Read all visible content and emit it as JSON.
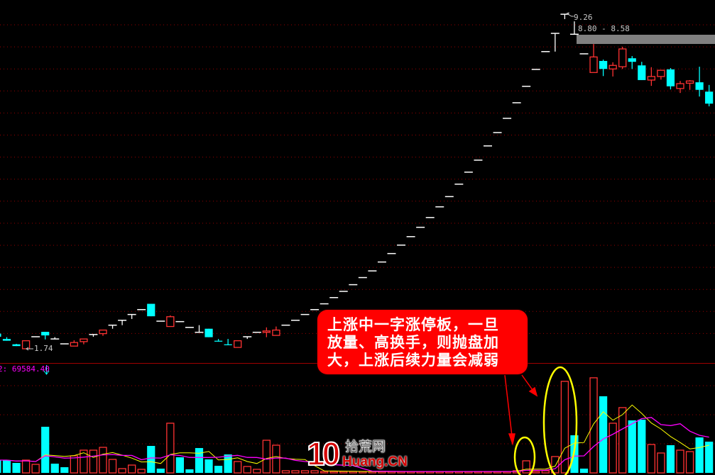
{
  "chart_data": {
    "type": "candlestick",
    "price_scale": "linear",
    "ylim": [
      1.42,
      9.58
    ],
    "grid": true,
    "colors": {
      "up": "#ff3232",
      "down": "#00ffff",
      "flat": "#ffffff",
      "ma_short": "#ffff00",
      "ma_long": "#ff00ff",
      "grid": "#9a0000",
      "gap_bar": "#808080"
    },
    "candles_ohlc": [
      [
        2.08,
        2.08,
        2.01,
        2.01
      ],
      [
        1.96,
        2.0,
        1.92,
        1.92
      ],
      [
        1.84,
        1.85,
        1.8,
        1.8
      ],
      [
        1.74,
        1.92,
        1.74,
        1.92
      ],
      [
        2.01,
        2.01,
        2.01,
        2.01
      ],
      [
        2.12,
        2.12,
        1.95,
        2.04
      ],
      [
        1.96,
        2.0,
        1.96,
        1.96
      ],
      [
        1.85,
        1.85,
        1.85,
        1.85
      ],
      [
        1.8,
        1.93,
        1.8,
        1.88
      ],
      [
        1.9,
        1.96,
        1.84,
        1.96
      ],
      [
        2.06,
        2.06,
        2.01,
        2.06
      ],
      [
        2.08,
        2.16,
        2.03,
        2.16
      ],
      [
        2.27,
        2.27,
        2.19,
        2.27
      ],
      [
        2.38,
        2.38,
        2.27,
        2.38
      ],
      [
        2.51,
        2.51,
        2.41,
        2.51
      ],
      [
        2.62,
        2.62,
        2.62,
        2.62
      ],
      [
        2.75,
        2.75,
        2.47,
        2.47
      ],
      [
        2.36,
        2.36,
        2.36,
        2.36
      ],
      [
        2.24,
        2.49,
        2.24,
        2.46
      ],
      [
        2.35,
        2.36,
        2.35,
        2.35
      ],
      [
        2.22,
        2.22,
        2.22,
        2.22
      ],
      [
        2.11,
        2.27,
        2.11,
        2.11
      ],
      [
        2.19,
        2.19,
        2.0,
        2.0
      ],
      [
        1.92,
        1.96,
        1.9,
        1.9
      ],
      [
        1.84,
        1.96,
        1.82,
        1.82
      ],
      [
        1.77,
        1.92,
        1.77,
        1.92
      ],
      [
        2.01,
        2.01,
        1.96,
        2.01
      ],
      [
        2.11,
        2.11,
        2.11,
        2.11
      ],
      [
        2.11,
        2.22,
        2.0,
        2.14
      ],
      [
        2.04,
        2.24,
        2.04,
        2.16
      ],
      [
        2.27,
        2.27,
        2.27,
        2.27
      ],
      [
        2.38,
        2.38,
        2.38,
        2.38
      ],
      [
        2.51,
        2.51,
        2.51,
        2.51
      ],
      [
        2.62,
        2.62,
        2.62,
        2.62
      ],
      [
        2.75,
        2.75,
        2.75,
        2.75
      ],
      [
        2.89,
        2.89,
        2.89,
        2.89
      ],
      [
        3.03,
        3.03,
        3.03,
        3.03
      ],
      [
        3.18,
        3.18,
        3.18,
        3.18
      ],
      [
        3.34,
        3.34,
        3.34,
        3.34
      ],
      [
        3.49,
        3.49,
        3.49,
        3.49
      ],
      [
        3.69,
        3.69,
        3.69,
        3.69
      ],
      [
        3.88,
        3.88,
        3.88,
        3.88
      ],
      [
        4.07,
        4.07,
        4.07,
        4.07
      ],
      [
        4.26,
        4.26,
        4.26,
        4.26
      ],
      [
        4.47,
        4.47,
        4.47,
        4.47
      ],
      [
        4.69,
        4.69,
        4.69,
        4.69
      ],
      [
        4.93,
        4.93,
        4.93,
        4.93
      ],
      [
        5.16,
        5.16,
        5.16,
        5.16
      ],
      [
        5.44,
        5.44,
        5.44,
        5.44
      ],
      [
        5.71,
        5.71,
        5.71,
        5.71
      ],
      [
        5.98,
        5.98,
        5.98,
        5.98
      ],
      [
        6.3,
        6.3,
        6.3,
        6.3
      ],
      [
        6.6,
        6.6,
        6.6,
        6.6
      ],
      [
        6.92,
        6.92,
        6.92,
        6.92
      ],
      [
        7.27,
        7.27,
        7.27,
        7.27
      ],
      [
        7.64,
        7.64,
        7.64,
        7.64
      ],
      [
        8.02,
        8.02,
        8.02,
        8.02
      ],
      [
        8.42,
        8.42,
        8.42,
        8.42
      ],
      [
        8.83,
        8.83,
        8.42,
        8.83
      ],
      [
        9.26,
        9.26,
        9.15,
        9.26
      ],
      [
        8.81,
        9.1,
        8.81,
        8.81
      ],
      [
        8.37,
        8.37,
        8.37,
        8.37
      ],
      [
        7.95,
        8.59,
        7.95,
        8.3
      ],
      [
        8.21,
        8.24,
        7.87,
        8.03
      ],
      [
        8.03,
        8.18,
        7.86,
        8.11
      ],
      [
        8.08,
        8.53,
        8.03,
        8.48
      ],
      [
        8.27,
        8.32,
        8.03,
        8.19
      ],
      [
        8.11,
        8.19,
        7.78,
        7.78
      ],
      [
        7.78,
        8.07,
        7.65,
        7.86
      ],
      [
        7.86,
        8.0,
        7.79,
        8.0
      ],
      [
        8.02,
        8.05,
        7.57,
        7.64
      ],
      [
        7.59,
        7.76,
        7.49,
        7.7
      ],
      [
        7.71,
        7.78,
        7.56,
        7.76
      ],
      [
        7.73,
        8.08,
        7.41,
        7.56
      ],
      [
        7.52,
        7.67,
        7.19,
        7.25
      ]
    ],
    "volume": {
      "ylim": [
        0,
        714000
      ],
      "values": [
        83500,
        83500,
        65000,
        83500,
        55700,
        301600,
        60300,
        37100,
        111400,
        148500,
        148500,
        167000,
        88200,
        27800,
        51000,
        23200,
        176300,
        27800,
        324800,
        102100,
        23200,
        162400,
        88200,
        46400,
        120600,
        74200,
        41800,
        23200,
        213400,
        181000,
        14000,
        14000,
        14000,
        14000,
        9000,
        9000,
        9000,
        9000,
        9000,
        9000,
        9000,
        9000,
        9000,
        9000,
        9000,
        9000,
        9000,
        9000,
        9000,
        9000,
        9000,
        9000,
        9000,
        9000,
        14000,
        78900,
        9000,
        14000,
        106700,
        598600,
        245900,
        27800,
        621800,
        501100,
        324800,
        426900,
        343400,
        348000,
        185600,
        129900,
        181000,
        148500,
        139200,
        232000,
        204200
      ],
      "direction": [
        "down",
        "down",
        "down",
        "up",
        "up",
        "down",
        "down",
        "down",
        "up",
        "up",
        "up",
        "up",
        "up",
        "up",
        "up",
        "up",
        "down",
        "down",
        "up",
        "down",
        "down",
        "down",
        "down",
        "down",
        "down",
        "up",
        "up",
        "up",
        "up",
        "up",
        "up",
        "up",
        "up",
        "up",
        "up",
        "up",
        "up",
        "up",
        "up",
        "up",
        "up",
        "up",
        "up",
        "up",
        "up",
        "up",
        "up",
        "up",
        "up",
        "up",
        "up",
        "up",
        "up",
        "up",
        "up",
        "up",
        "up",
        "up",
        "up",
        "up",
        "down",
        "down",
        "up",
        "down",
        "up",
        "up",
        "down",
        "down",
        "up",
        "up",
        "down",
        "up",
        "up",
        "down",
        "down"
      ],
      "ma_short_period": 5,
      "ma_long_period": 10,
      "ma_label": "2: 69584.40"
    },
    "annotations": {
      "low_label": "1.74",
      "high_label": "9.26",
      "gap_label": "8.80 - 8.58"
    }
  },
  "callout": {
    "lines": [
      "上涨中一字涨停板，一旦",
      "放量、高换手，则抛盘加",
      "大，上涨后续力量会减弱"
    ],
    "color": "#ff0000"
  },
  "watermark": {
    "number": "10",
    "cn": "拾荒网",
    "en": "Huang.CN"
  }
}
